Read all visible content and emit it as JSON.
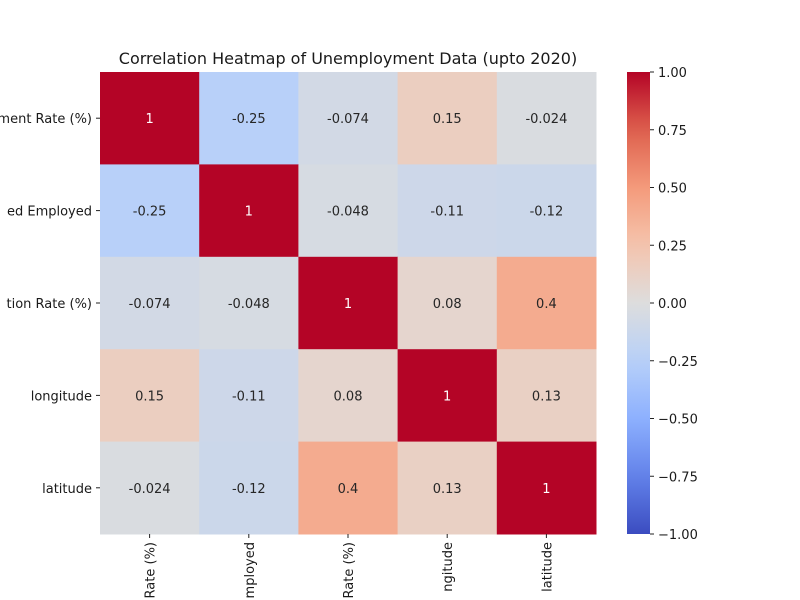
{
  "chart_data": {
    "type": "heatmap",
    "title": "Correlation Heatmap of Unemployment Data (upto 2020)",
    "row_labels": [
      "ment Rate (%)",
      "ed Employed",
      "tion Rate (%)",
      "longitude",
      "latitude"
    ],
    "col_labels": [
      "Rate (%)",
      "mployed",
      "Rate (%)",
      "ngitude",
      "latitude"
    ],
    "values": [
      [
        1,
        -0.25,
        -0.074,
        0.15,
        -0.024
      ],
      [
        -0.25,
        1,
        -0.048,
        -0.11,
        -0.12
      ],
      [
        -0.074,
        -0.048,
        1,
        0.08,
        0.4
      ],
      [
        0.15,
        -0.11,
        0.08,
        1,
        0.13
      ],
      [
        -0.024,
        -0.12,
        0.4,
        0.13,
        1
      ]
    ],
    "value_labels": [
      [
        "1",
        "-0.25",
        "-0.074",
        "0.15",
        "-0.024"
      ],
      [
        "-0.25",
        "1",
        "-0.048",
        "-0.11",
        "-0.12"
      ],
      [
        "-0.074",
        "-0.048",
        "1",
        "0.08",
        "0.4"
      ],
      [
        "0.15",
        "-0.11",
        "0.08",
        "1",
        "0.13"
      ],
      [
        "-0.024",
        "-0.12",
        "0.4",
        "0.13",
        "1"
      ]
    ],
    "colormap": "coolwarm",
    "vmin": -1,
    "vmax": 1,
    "colorbar_ticks": [
      1.0,
      0.75,
      0.5,
      0.25,
      0.0,
      -0.25,
      -0.5,
      -0.75,
      -1.0
    ],
    "colorbar_tick_labels": [
      "1.00",
      "0.75",
      "0.50",
      "0.25",
      "0.00",
      "−0.25",
      "−0.50",
      "−0.75",
      "−1.00"
    ]
  }
}
